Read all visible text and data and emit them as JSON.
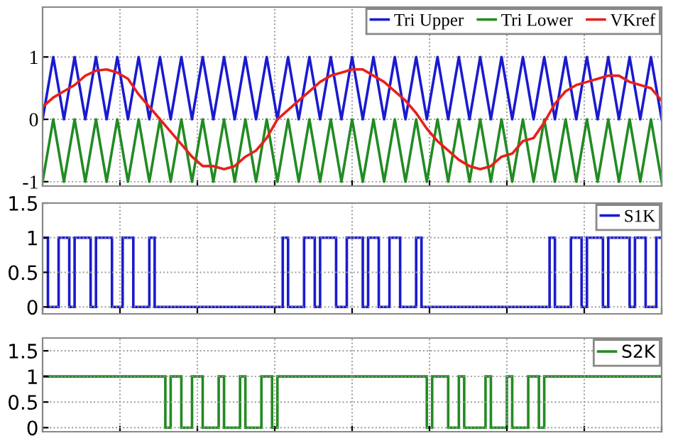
{
  "chart_data": [
    {
      "type": "line",
      "categories": [
        null,
        null,
        null,
        null,
        null,
        null,
        null,
        null,
        null,
        null,
        null,
        null,
        null,
        null,
        null,
        null,
        null,
        null,
        null,
        null,
        null,
        null,
        null,
        null,
        null,
        null,
        null,
        null,
        null,
        null,
        null,
        null,
        null,
        null,
        null,
        null,
        null,
        null,
        null,
        null,
        null,
        null,
        null,
        null,
        null,
        null,
        null,
        null,
        null,
        null,
        null,
        null,
        null,
        null,
        null,
        null,
        null,
        null,
        null
      ],
      "series": [
        {
          "name": "Tri Upper",
          "color": "#1a1ad0",
          "values": [
            0,
            1,
            0,
            1,
            0,
            1,
            0,
            1,
            0,
            1,
            0,
            1,
            0,
            1,
            0,
            1,
            0,
            1,
            0,
            1,
            0,
            1,
            0,
            1,
            0,
            1,
            0,
            1,
            0,
            1,
            0,
            1,
            0,
            1,
            0,
            1,
            0,
            1,
            0,
            1,
            0,
            1,
            0,
            1,
            0,
            1,
            0,
            1,
            0,
            1,
            0,
            1,
            0,
            1,
            0,
            1,
            0,
            1,
            0
          ]
        },
        {
          "name": "Tri Lower",
          "color": "#228b22",
          "values": [
            -1,
            0,
            -1,
            0,
            -1,
            0,
            -1,
            0,
            -1,
            0,
            -1,
            0,
            -1,
            0,
            -1,
            0,
            -1,
            0,
            -1,
            0,
            -1,
            0,
            -1,
            0,
            -1,
            0,
            -1,
            0,
            -1,
            0,
            -1,
            0,
            -1,
            0,
            -1,
            0,
            -1,
            0,
            -1,
            0,
            -1,
            0,
            -1,
            0,
            -1,
            0,
            -1,
            0,
            -1,
            0,
            -1,
            0,
            -1,
            0,
            -1,
            0,
            -1,
            0,
            -1
          ]
        },
        {
          "name": "VKref",
          "color": "#e8201c",
          "values": [
            0.2,
            0.35,
            0.45,
            0.55,
            0.7,
            0.78,
            0.8,
            0.75,
            0.65,
            0.4,
            0.2,
            0.0,
            -0.2,
            -0.4,
            -0.6,
            -0.75,
            -0.75,
            -0.8,
            -0.75,
            -0.6,
            -0.5,
            -0.3,
            0.0,
            0.15,
            0.3,
            0.45,
            0.6,
            0.7,
            0.75,
            0.8,
            0.8,
            0.7,
            0.6,
            0.45,
            0.3,
            0.1,
            -0.15,
            -0.35,
            -0.5,
            -0.65,
            -0.75,
            -0.8,
            -0.75,
            -0.6,
            -0.55,
            -0.35,
            -0.3,
            -0.05,
            0.25,
            0.45,
            0.55,
            0.6,
            0.65,
            0.7,
            0.7,
            0.6,
            0.55,
            0.5,
            0.3
          ]
        }
      ],
      "ylim": [
        -1.07,
        1.8
      ],
      "yticks": [
        -1,
        0,
        1
      ],
      "grid": true,
      "legend": "top right",
      "tick_labels": "y"
    },
    {
      "type": "step",
      "categories": [
        null,
        null,
        null,
        null,
        null,
        null,
        null,
        null,
        null,
        null,
        null,
        null,
        null,
        null,
        null,
        null,
        null,
        null,
        null,
        null,
        null,
        null,
        null,
        null,
        null,
        null,
        null,
        null,
        null,
        null,
        null,
        null,
        null,
        null,
        null,
        null,
        null,
        null,
        null,
        null,
        null,
        null,
        null,
        null,
        null,
        null,
        null,
        null,
        null,
        null,
        null,
        null,
        null,
        null,
        null,
        null,
        null,
        null,
        null,
        null,
        null,
        null,
        null,
        null,
        null,
        null,
        null,
        null,
        null,
        null,
        null,
        null,
        null,
        null,
        null,
        null,
        null,
        null,
        null,
        null,
        null,
        null,
        null,
        null,
        null,
        null,
        null,
        null,
        null,
        null,
        null,
        null,
        null,
        null,
        null,
        null,
        null,
        null,
        null,
        null,
        null,
        null,
        null,
        null,
        null,
        null,
        null,
        null,
        null,
        null,
        null,
        null,
        null,
        null,
        null,
        null
      ],
      "series": [
        {
          "name": "S1K",
          "color": "#1a1ad0",
          "values": [
            1,
            0,
            0,
            1,
            1,
            0,
            1,
            1,
            1,
            0,
            1,
            1,
            1,
            0,
            0,
            1,
            1,
            0,
            0,
            0,
            1,
            0,
            0,
            0,
            0,
            0,
            0,
            0,
            0,
            0,
            0,
            0,
            0,
            0,
            0,
            0,
            0,
            0,
            0,
            0,
            0,
            0,
            0,
            0,
            0,
            1,
            0,
            0,
            0,
            1,
            1,
            0,
            1,
            1,
            1,
            0,
            0,
            1,
            1,
            1,
            0,
            1,
            1,
            0,
            0,
            1,
            1,
            0,
            0,
            0,
            1,
            0,
            0,
            0,
            0,
            0,
            0,
            0,
            0,
            0,
            0,
            0,
            0,
            0,
            0,
            0,
            0,
            0,
            0,
            0,
            0,
            0,
            0,
            0,
            0,
            1,
            0,
            0,
            0,
            1,
            1,
            0,
            1,
            1,
            1,
            0,
            1,
            1,
            1,
            1,
            0,
            1,
            1,
            0,
            0,
            1
          ]
        }
      ],
      "ylim": [
        -0.1,
        1.5
      ],
      "yticks": [
        0,
        0.5,
        1,
        1.5
      ],
      "grid": true,
      "legend": "top right",
      "tick_labels": "y"
    },
    {
      "type": "step",
      "categories": [
        null,
        null,
        null,
        null,
        null,
        null,
        null,
        null,
        null,
        null,
        null,
        null,
        null,
        null,
        null,
        null,
        null,
        null,
        null,
        null,
        null,
        null,
        null,
        null,
        null,
        null,
        null,
        null,
        null,
        null,
        null,
        null,
        null,
        null,
        null,
        null,
        null,
        null,
        null,
        null,
        null,
        null,
        null,
        null,
        null,
        null,
        null,
        null,
        null,
        null,
        null,
        null,
        null,
        null,
        null,
        null,
        null,
        null,
        null,
        null,
        null,
        null,
        null,
        null,
        null,
        null,
        null,
        null,
        null,
        null,
        null,
        null,
        null,
        null,
        null,
        null,
        null,
        null,
        null,
        null,
        null,
        null,
        null,
        null,
        null,
        null,
        null,
        null,
        null,
        null,
        null,
        null,
        null,
        null,
        null,
        null,
        null,
        null,
        null,
        null,
        null,
        null,
        null,
        null,
        null,
        null,
        null,
        null,
        null,
        null,
        null,
        null,
        null,
        null,
        null,
        null
      ],
      "series": [
        {
          "name": "S2K",
          "color": "#228b22",
          "values": [
            1,
            1,
            1,
            1,
            1,
            1,
            1,
            1,
            1,
            1,
            1,
            1,
            1,
            1,
            1,
            1,
            1,
            1,
            1,
            1,
            1,
            1,
            1,
            0,
            1,
            1,
            0,
            0,
            1,
            1,
            0,
            0,
            0,
            1,
            0,
            0,
            0,
            1,
            0,
            0,
            0,
            1,
            1,
            0,
            1,
            1,
            1,
            1,
            1,
            1,
            1,
            1,
            1,
            1,
            1,
            1,
            1,
            1,
            1,
            1,
            1,
            1,
            1,
            1,
            1,
            1,
            1,
            1,
            1,
            1,
            1,
            1,
            0,
            1,
            1,
            1,
            0,
            0,
            1,
            0,
            0,
            0,
            0,
            1,
            0,
            0,
            0,
            1,
            0,
            0,
            0,
            1,
            1,
            0,
            1,
            1,
            1,
            1,
            1,
            1,
            1,
            1,
            1,
            1,
            1,
            1,
            1,
            1,
            1,
            1,
            1,
            1,
            1,
            1,
            1,
            1
          ]
        }
      ],
      "ylim": [
        -0.08,
        1.75
      ],
      "yticks": [
        0,
        0.5,
        1,
        1.5
      ],
      "grid": true,
      "legend": "top right",
      "tick_labels": "y"
    }
  ]
}
